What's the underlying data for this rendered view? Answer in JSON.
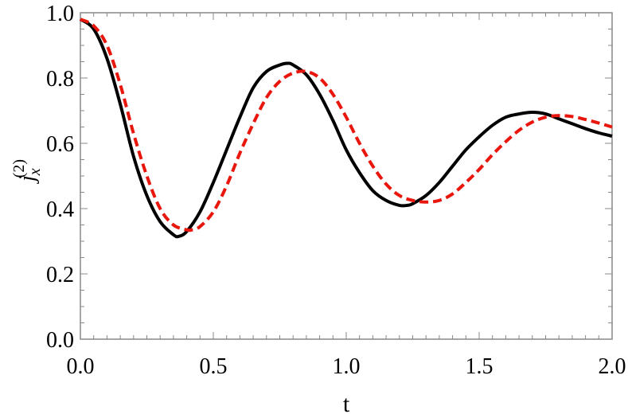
{
  "chart_data": {
    "type": "line",
    "title": "",
    "xlabel": "t",
    "ylabel": {
      "base": "j",
      "subscript": "x",
      "superscript": "(2)"
    },
    "xlim": [
      0,
      2
    ],
    "ylim": [
      0,
      1
    ],
    "grid": false,
    "legend": "none",
    "x_ticks": [
      0,
      0.5,
      1,
      1.5,
      2
    ],
    "x_tick_labels": [
      "0.0",
      "0.5",
      "1.0",
      "1.5",
      "2.0"
    ],
    "y_ticks": [
      0,
      0.2,
      0.4,
      0.6,
      0.8,
      1
    ],
    "y_tick_labels": [
      "0.0",
      "0.2",
      "0.4",
      "0.6",
      "0.8",
      "1.0"
    ],
    "series": [
      {
        "color": "#000000",
        "style": "solid",
        "x": [
          0.0,
          0.05,
          0.1,
          0.15,
          0.2,
          0.25,
          0.3,
          0.35,
          0.37,
          0.4,
          0.45,
          0.5,
          0.55,
          0.6,
          0.65,
          0.7,
          0.75,
          0.78,
          0.8,
          0.85,
          0.9,
          0.95,
          1.0,
          1.05,
          1.1,
          1.15,
          1.2,
          1.23,
          1.25,
          1.3,
          1.35,
          1.4,
          1.45,
          1.5,
          1.55,
          1.6,
          1.65,
          1.7,
          1.75,
          1.8,
          1.85,
          1.9,
          1.95,
          2.0
        ],
        "y": [
          0.98,
          0.95,
          0.86,
          0.72,
          0.56,
          0.44,
          0.36,
          0.32,
          0.315,
          0.33,
          0.39,
          0.48,
          0.58,
          0.68,
          0.77,
          0.82,
          0.84,
          0.845,
          0.84,
          0.81,
          0.75,
          0.67,
          0.58,
          0.51,
          0.455,
          0.425,
          0.41,
          0.41,
          0.415,
          0.44,
          0.48,
          0.53,
          0.58,
          0.62,
          0.655,
          0.68,
          0.69,
          0.695,
          0.69,
          0.675,
          0.66,
          0.645,
          0.632,
          0.622
        ]
      },
      {
        "color": "#e8160c",
        "style": "dashed",
        "x": [
          0.0,
          0.05,
          0.1,
          0.15,
          0.2,
          0.25,
          0.3,
          0.35,
          0.4,
          0.42,
          0.45,
          0.5,
          0.55,
          0.6,
          0.65,
          0.7,
          0.75,
          0.8,
          0.85,
          0.9,
          0.95,
          1.0,
          1.05,
          1.1,
          1.15,
          1.2,
          1.25,
          1.3,
          1.35,
          1.4,
          1.45,
          1.5,
          1.55,
          1.6,
          1.65,
          1.7,
          1.75,
          1.8,
          1.85,
          1.9,
          1.95,
          2.0
        ],
        "y": [
          0.98,
          0.96,
          0.9,
          0.78,
          0.63,
          0.5,
          0.4,
          0.35,
          0.335,
          0.335,
          0.345,
          0.39,
          0.47,
          0.57,
          0.66,
          0.74,
          0.79,
          0.815,
          0.82,
          0.8,
          0.75,
          0.68,
          0.6,
          0.53,
          0.475,
          0.44,
          0.425,
          0.42,
          0.425,
          0.445,
          0.48,
          0.52,
          0.565,
          0.605,
          0.64,
          0.665,
          0.68,
          0.685,
          0.682,
          0.673,
          0.662,
          0.65
        ]
      }
    ]
  }
}
